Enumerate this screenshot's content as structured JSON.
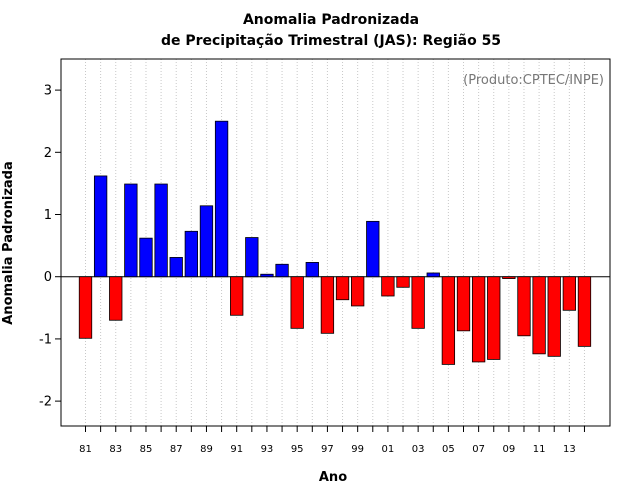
{
  "chart_data": {
    "type": "bar",
    "title": [
      "Anomalia Padronizada",
      "de Precipitação Trimestral (JAS): Região 55"
    ],
    "xlabel": "Ano",
    "ylabel": "Anomalia Padronizada",
    "annotation": "(Produto:CPTEC/INPE)",
    "ylim": [
      -2.4,
      3.5
    ],
    "yticks": [
      -2,
      -1,
      0,
      1,
      2,
      3
    ],
    "grid": "vertical-dotted",
    "positive_color": "#0000ff",
    "negative_color": "#ff0000",
    "categories": [
      "81",
      "82",
      "83",
      "84",
      "85",
      "86",
      "87",
      "88",
      "89",
      "90",
      "91",
      "92",
      "93",
      "94",
      "95",
      "96",
      "97",
      "98",
      "99",
      "00",
      "01",
      "02",
      "03",
      "04",
      "05",
      "06",
      "07",
      "08",
      "09",
      "10",
      "11",
      "12",
      "13",
      "14"
    ],
    "xtick_labels": [
      "81",
      "83",
      "85",
      "87",
      "89",
      "91",
      "93",
      "95",
      "97",
      "99",
      "01",
      "03",
      "05",
      "07",
      "09",
      "11",
      "13"
    ],
    "values": [
      -0.99,
      1.62,
      -0.7,
      1.49,
      0.62,
      1.49,
      0.31,
      0.73,
      1.14,
      2.5,
      -0.62,
      0.63,
      0.04,
      0.2,
      -0.83,
      0.23,
      -0.91,
      -0.37,
      -0.47,
      0.89,
      -0.31,
      -0.17,
      -0.83,
      0.06,
      -1.41,
      -0.87,
      -1.37,
      -1.33,
      -0.03,
      -0.95,
      -1.24,
      -1.28,
      -0.54,
      -1.12
    ]
  }
}
